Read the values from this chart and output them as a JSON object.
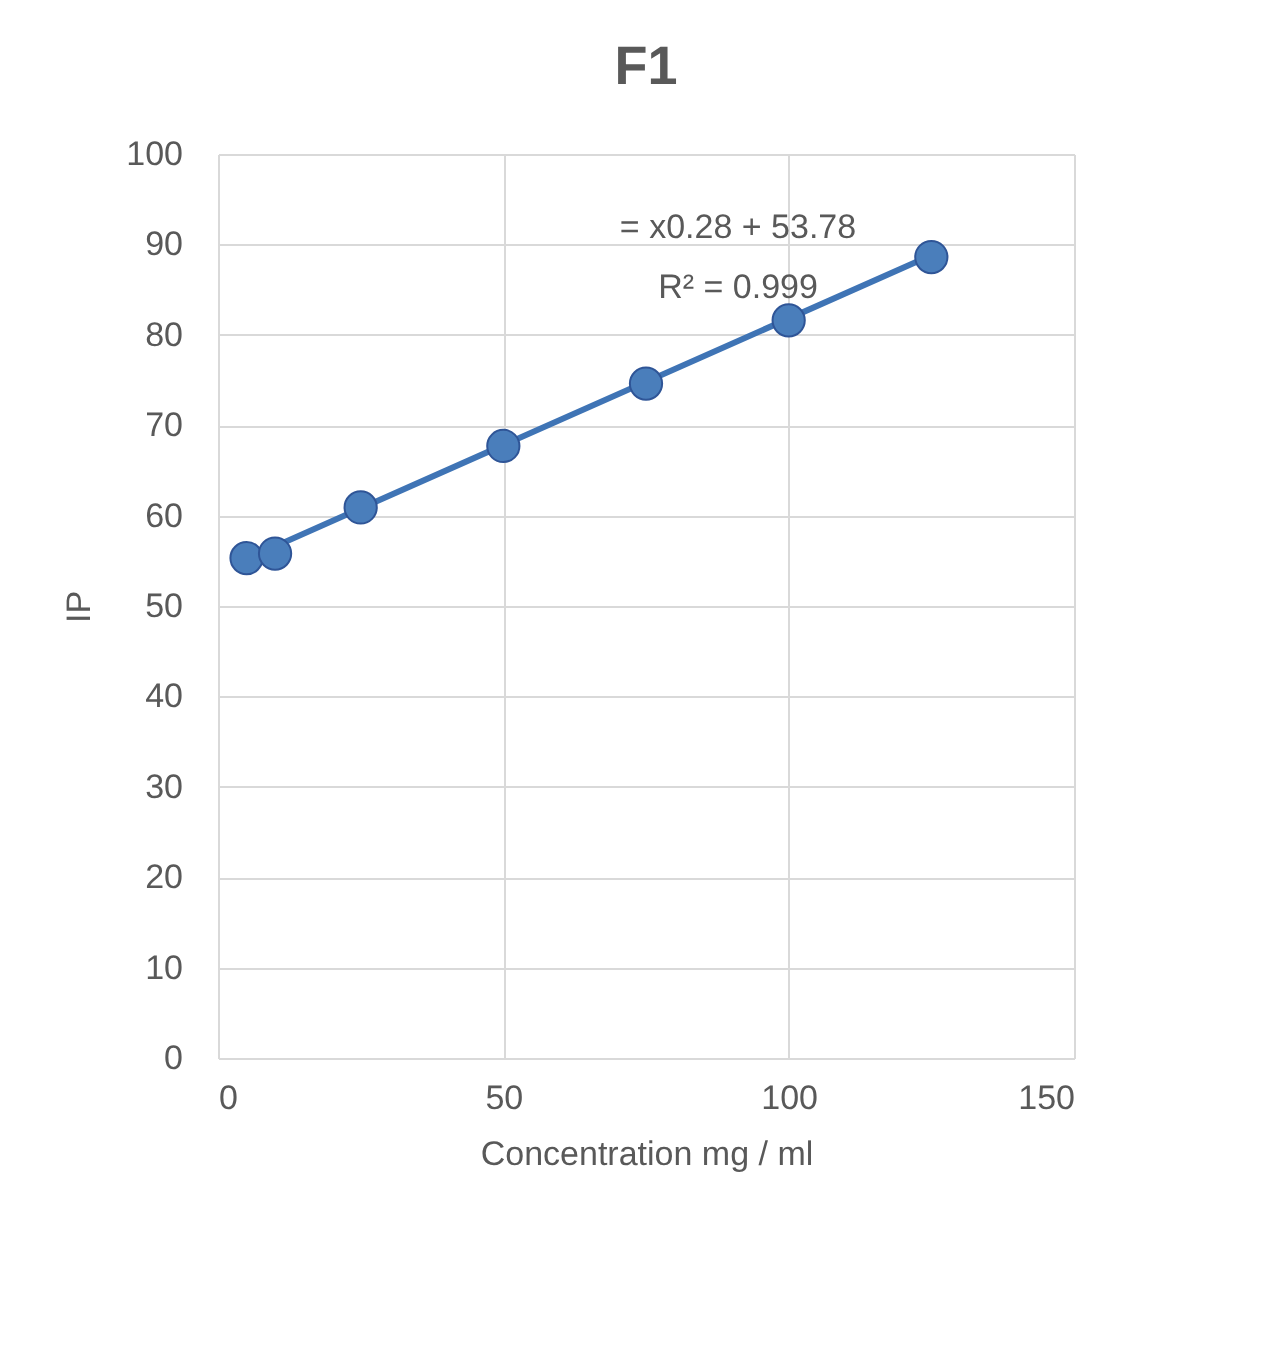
{
  "chart_data": {
    "type": "scatter",
    "title": "F1",
    "xlabel": "Concentration mg / ml",
    "ylabel": "IP",
    "x": [
      5,
      10,
      25,
      50,
      75,
      100,
      125
    ],
    "series": [
      {
        "color": "#4a7ebb",
        "values": [
          55.3,
          55.8,
          60.9,
          67.7,
          74.6,
          81.6,
          88.6
        ]
      },
      {
        "type": "line",
        "color": "#3f74b5",
        "marker": "none",
        "x": [
          5,
          125
        ],
        "values": [
          55.2,
          88.8
        ]
      }
    ],
    "annotations": [
      "= x0.28 + 53.78",
      "R² = 0.999"
    ],
    "xlim": [
      0,
      150
    ],
    "xticks": [
      0,
      50,
      100,
      150
    ],
    "ylim": [
      0,
      100
    ],
    "yticks": [
      0,
      10,
      20,
      30,
      40,
      50,
      60,
      70,
      80,
      90,
      100
    ],
    "grid": true,
    "marker": "circle"
  }
}
